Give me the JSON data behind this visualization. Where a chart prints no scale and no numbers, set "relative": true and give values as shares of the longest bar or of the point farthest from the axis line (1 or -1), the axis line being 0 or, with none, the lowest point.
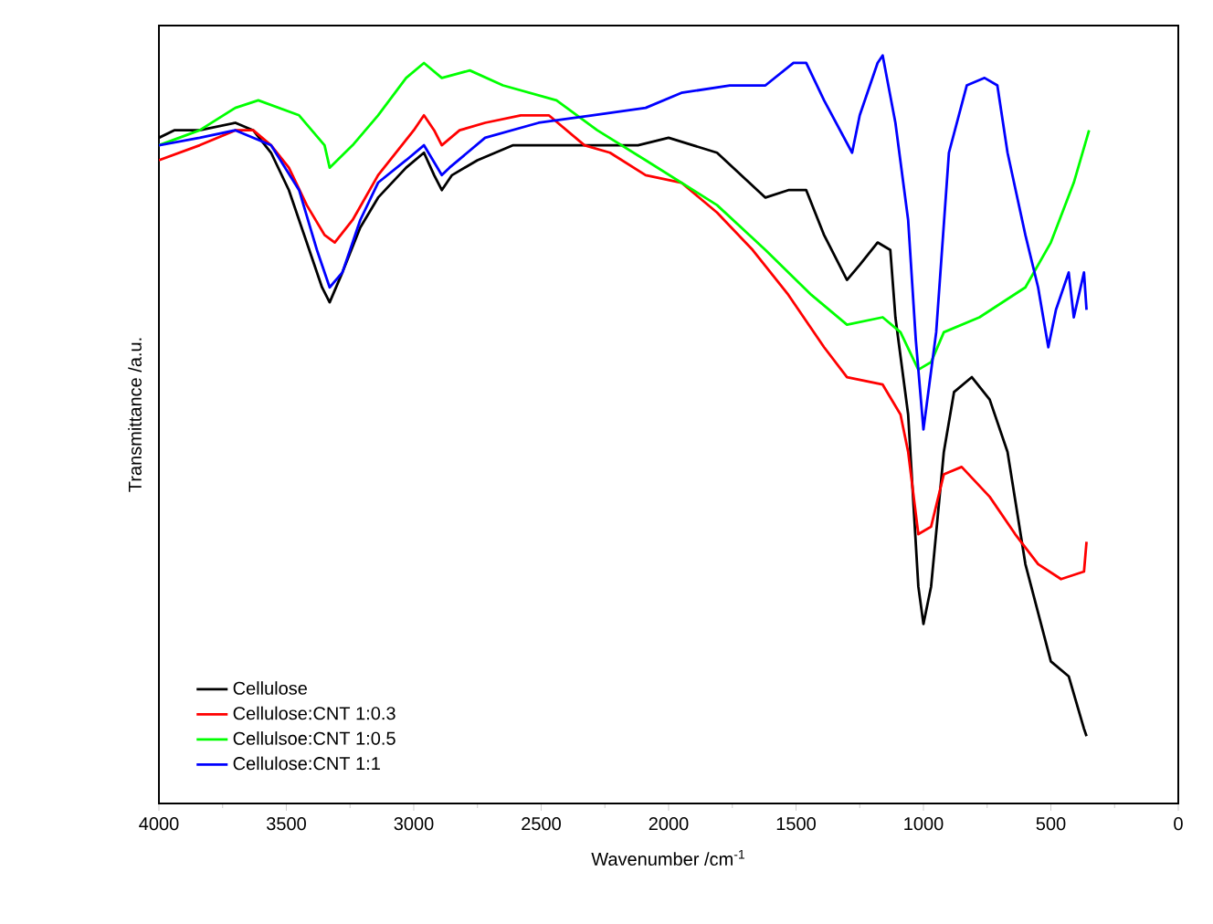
{
  "chart_data": {
    "type": "line",
    "xlabel": "Wavenumber /cm$^{-1}$",
    "ylabel": "Transmittance /a.u.",
    "relative": true,
    "xlim": [
      4000,
      0
    ],
    "xticks": [
      4000,
      3500,
      3000,
      2500,
      2000,
      1500,
      1000,
      500,
      0
    ],
    "legend": "bottom left",
    "grid": false,
    "marker": "none",
    "line_style": "solid",
    "series": [
      {
        "name": "Cellulose",
        "color": "#000000",
        "x": [
          4000,
          3940,
          3840,
          3700,
          3630,
          3560,
          3490,
          3420,
          3360,
          3330,
          3280,
          3210,
          3140,
          3030,
          2960,
          2920,
          2890,
          2850,
          2750,
          2610,
          2510,
          2300,
          2120,
          2000,
          1810,
          1620,
          1530,
          1460,
          1390,
          1300,
          1250,
          1180,
          1130,
          1110,
          1060,
          1020,
          1000,
          970,
          920,
          880,
          810,
          740,
          670,
          600,
          500,
          430,
          370,
          360
        ],
        "values": [
          0.89,
          0.9,
          0.9,
          0.91,
          0.9,
          0.87,
          0.82,
          0.75,
          0.69,
          0.67,
          0.71,
          0.77,
          0.81,
          0.85,
          0.87,
          0.84,
          0.82,
          0.84,
          0.86,
          0.88,
          0.88,
          0.88,
          0.88,
          0.89,
          0.87,
          0.81,
          0.82,
          0.82,
          0.76,
          0.7,
          0.72,
          0.75,
          0.74,
          0.65,
          0.52,
          0.29,
          0.24,
          0.29,
          0.47,
          0.55,
          0.57,
          0.54,
          0.47,
          0.32,
          0.19,
          0.17,
          0.1,
          0.09
        ]
      },
      {
        "name": "Cellulose:CNT 1:0.3",
        "color": "#ff0000",
        "x": [
          4000,
          3840,
          3700,
          3630,
          3560,
          3490,
          3420,
          3350,
          3310,
          3240,
          3140,
          3000,
          2960,
          2920,
          2890,
          2820,
          2720,
          2580,
          2470,
          2330,
          2230,
          2090,
          1950,
          1810,
          1670,
          1530,
          1390,
          1300,
          1160,
          1090,
          1060,
          1020,
          970,
          920,
          850,
          740,
          640,
          550,
          460,
          370,
          360
        ],
        "values": [
          0.86,
          0.88,
          0.9,
          0.9,
          0.88,
          0.85,
          0.8,
          0.76,
          0.75,
          0.78,
          0.84,
          0.9,
          0.92,
          0.9,
          0.88,
          0.9,
          0.91,
          0.92,
          0.92,
          0.88,
          0.87,
          0.84,
          0.83,
          0.79,
          0.74,
          0.68,
          0.61,
          0.57,
          0.56,
          0.52,
          0.47,
          0.36,
          0.37,
          0.44,
          0.45,
          0.41,
          0.36,
          0.32,
          0.3,
          0.31,
          0.35
        ]
      },
      {
        "name": "Cellulsoe:CNT 1:0.5",
        "color": "#00ff00",
        "x": [
          4000,
          3840,
          3700,
          3610,
          3450,
          3350,
          3330,
          3240,
          3140,
          3030,
          2960,
          2890,
          2780,
          2650,
          2440,
          2280,
          2090,
          1950,
          1810,
          1620,
          1440,
          1300,
          1160,
          1090,
          1020,
          970,
          920,
          780,
          600,
          500,
          410,
          350
        ],
        "values": [
          0.88,
          0.9,
          0.93,
          0.94,
          0.92,
          0.88,
          0.85,
          0.88,
          0.92,
          0.97,
          0.99,
          0.97,
          0.98,
          0.96,
          0.94,
          0.9,
          0.86,
          0.83,
          0.8,
          0.74,
          0.68,
          0.64,
          0.65,
          0.63,
          0.58,
          0.59,
          0.63,
          0.65,
          0.69,
          0.75,
          0.83,
          0.9
        ]
      },
      {
        "name": "Cellulose:CNT 1:1",
        "color": "#0000ff",
        "x": [
          4000,
          3840,
          3700,
          3560,
          3450,
          3380,
          3330,
          3280,
          3210,
          3140,
          3030,
          2960,
          2890,
          2860,
          2720,
          2510,
          2300,
          2090,
          1950,
          1760,
          1620,
          1510,
          1460,
          1390,
          1280,
          1250,
          1180,
          1160,
          1110,
          1060,
          1030,
          1000,
          950,
          900,
          830,
          760,
          710,
          670,
          600,
          550,
          510,
          480,
          430,
          410,
          370,
          360
        ],
        "values": [
          0.88,
          0.89,
          0.9,
          0.88,
          0.82,
          0.74,
          0.69,
          0.71,
          0.78,
          0.83,
          0.86,
          0.88,
          0.84,
          0.85,
          0.89,
          0.91,
          0.92,
          0.93,
          0.95,
          0.96,
          0.96,
          0.99,
          0.99,
          0.94,
          0.87,
          0.92,
          0.99,
          1.0,
          0.91,
          0.78,
          0.62,
          0.5,
          0.63,
          0.87,
          0.96,
          0.97,
          0.96,
          0.87,
          0.76,
          0.69,
          0.61,
          0.66,
          0.71,
          0.65,
          0.71,
          0.66
        ]
      }
    ]
  }
}
